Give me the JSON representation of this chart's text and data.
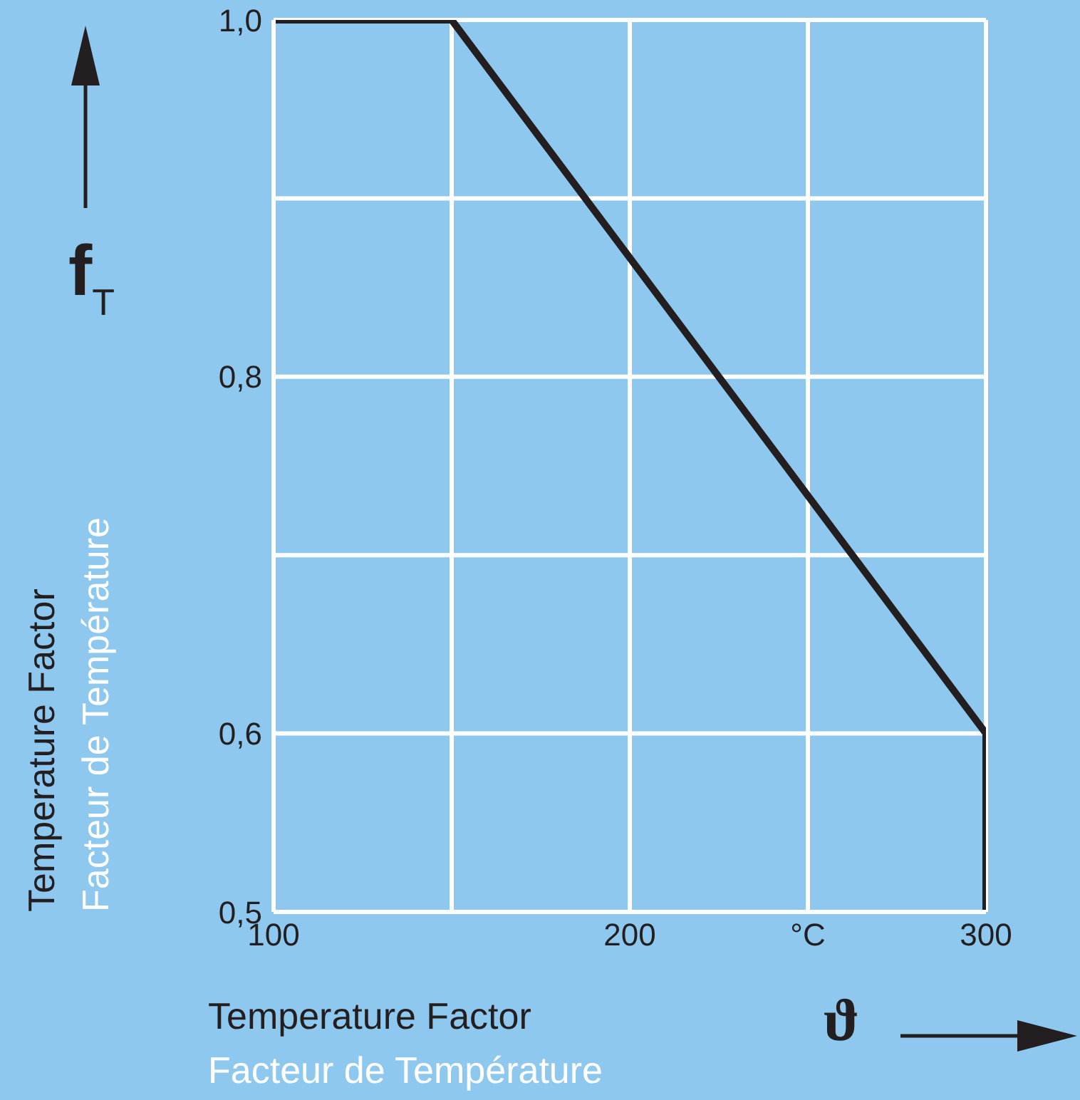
{
  "chart_data": {
    "type": "line",
    "xlabel": "ϑ",
    "ylabel": "f$_{T}$",
    "annotations": [
      "Temperature Factor",
      "Facteur de Température",
      "Temperature Factor",
      "Facteur de Température"
    ],
    "x": [
      100,
      150,
      300,
      300
    ],
    "series": [
      {
        "color": "#231f20",
        "values": [
          1.0,
          1.0,
          0.6,
          0.5
        ]
      }
    ],
    "xlim": [
      100,
      300
    ],
    "xticks": [
      100,
      {
        "value": 150,
        "label": null
      },
      200,
      {
        "value": 250,
        "label": "°C"
      },
      300
    ],
    "ylim": [
      0.5,
      1.0
    ],
    "yticks": [
      {
        "value": 0.5,
        "label": "0,5"
      },
      {
        "value": 0.6,
        "label": "0,6"
      },
      {
        "value": 0.7,
        "label": null
      },
      {
        "value": 0.8,
        "label": "0,8"
      },
      {
        "value": 0.9,
        "label": null
      },
      {
        "value": 1.0,
        "label": "1,0"
      }
    ],
    "grid": true,
    "legend": false,
    "marker": "none",
    "line_style": "solid"
  }
}
